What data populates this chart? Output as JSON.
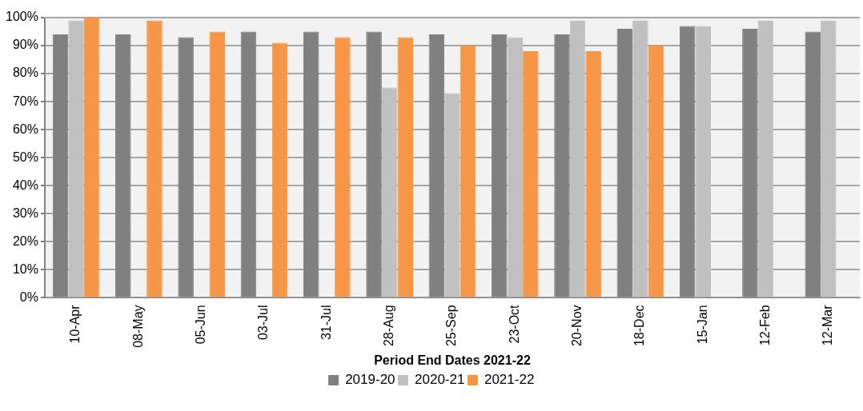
{
  "chart_data": {
    "type": "bar",
    "xlabel": "Period End Dates 2021-22",
    "categories": [
      "10-Apr",
      "08-May",
      "05-Jun",
      "03-Jul",
      "31-Jul",
      "28-Aug",
      "25-Sep",
      "23-Oct",
      "20-Nov",
      "18-Dec",
      "15-Jan",
      "12-Feb",
      "12-Mar"
    ],
    "series": [
      {
        "name": "2019-20",
        "color": "#808080",
        "values": [
          94,
          94,
          93,
          95,
          95,
          95,
          94,
          94,
          94,
          96,
          97,
          96,
          95
        ]
      },
      {
        "name": "2020-21",
        "color": "#c0c0c0",
        "values": [
          99,
          null,
          null,
          null,
          null,
          75,
          73,
          93,
          99,
          99,
          97,
          99,
          99
        ]
      },
      {
        "name": "2021-22",
        "color": "#f79646",
        "values": [
          100,
          99,
          95,
          91,
          93,
          93,
          90,
          88,
          88,
          90,
          null,
          null,
          null
        ]
      }
    ],
    "ylim": [
      0,
      100
    ],
    "yticks": [
      {
        "value": 0,
        "label": "0%"
      },
      {
        "value": 10,
        "label": "10%"
      },
      {
        "value": 20,
        "label": "20%"
      },
      {
        "value": 30,
        "label": "30%"
      },
      {
        "value": 40,
        "label": "40%"
      },
      {
        "value": 50,
        "label": "50%"
      },
      {
        "value": 60,
        "label": "60%"
      },
      {
        "value": 70,
        "label": "70%"
      },
      {
        "value": 80,
        "label": "80%"
      },
      {
        "value": 90,
        "label": "90%"
      },
      {
        "value": 100,
        "label": "100%"
      }
    ],
    "grid": "y",
    "legend": "bottom"
  }
}
